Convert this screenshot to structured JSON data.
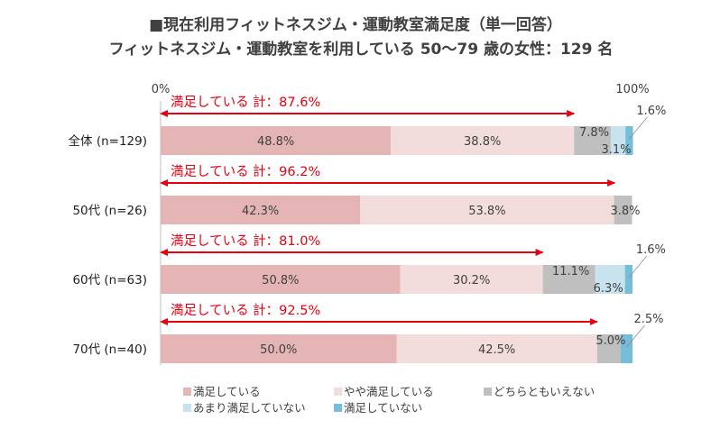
{
  "title_line1": "■現在利用フィットネスジム・運動教室満足度（単一回答）",
  "title_line2": "フィットネスジム・運動教室を利用している 50～79 歳の女性：129 名",
  "chart_data": {
    "type": "bar",
    "orientation": "horizontal",
    "stacked": true,
    "xlim": [
      0,
      100
    ],
    "x_tick_labels": [
      "0%",
      "100%"
    ],
    "categories": [
      "全体 (n=129)",
      "50代 (n=26)",
      "60代 (n=63)",
      "70代 (n=40)"
    ],
    "series": [
      {
        "name": "満足している",
        "color": "#e5b5b5",
        "values": [
          48.8,
          42.3,
          50.8,
          50.0
        ],
        "labels": [
          "48.8%",
          "42.3%",
          "50.8%",
          "50.0%"
        ]
      },
      {
        "name": "やや満足している",
        "color": "#f2dcdc",
        "values": [
          38.8,
          53.8,
          30.2,
          42.5
        ],
        "labels": [
          "38.8%",
          "53.8%",
          "30.2%",
          "42.5%"
        ]
      },
      {
        "name": "どちらともいえない",
        "color": "#bfbfbf",
        "values": [
          7.8,
          3.8,
          11.1,
          5.0
        ],
        "labels": [
          "7.8%",
          "3.8%",
          "11.1%",
          "5.0%"
        ]
      },
      {
        "name": "あまり満足していない",
        "color": "#c8e3ee",
        "values": [
          3.1,
          0,
          6.3,
          0
        ],
        "labels": [
          "3.1%",
          "",
          "6.3%",
          ""
        ]
      },
      {
        "name": "満足していない",
        "color": "#75bdd9",
        "values": [
          1.6,
          0,
          1.6,
          2.5
        ],
        "labels": [
          "1.6%",
          "",
          "1.6%",
          "2.5%"
        ]
      }
    ],
    "annotations": [
      {
        "text": "満足している 計：87.6%",
        "value": 87.6
      },
      {
        "text": "満足している 計：96.2%",
        "value": 96.2
      },
      {
        "text": "満足している 計：81.0%",
        "value": 81.0
      },
      {
        "text": "満足している 計：92.5%",
        "value": 92.5
      }
    ],
    "legend": {
      "position": "bottom",
      "columns": 3
    },
    "colors": {
      "annotation": "#e60012"
    }
  }
}
